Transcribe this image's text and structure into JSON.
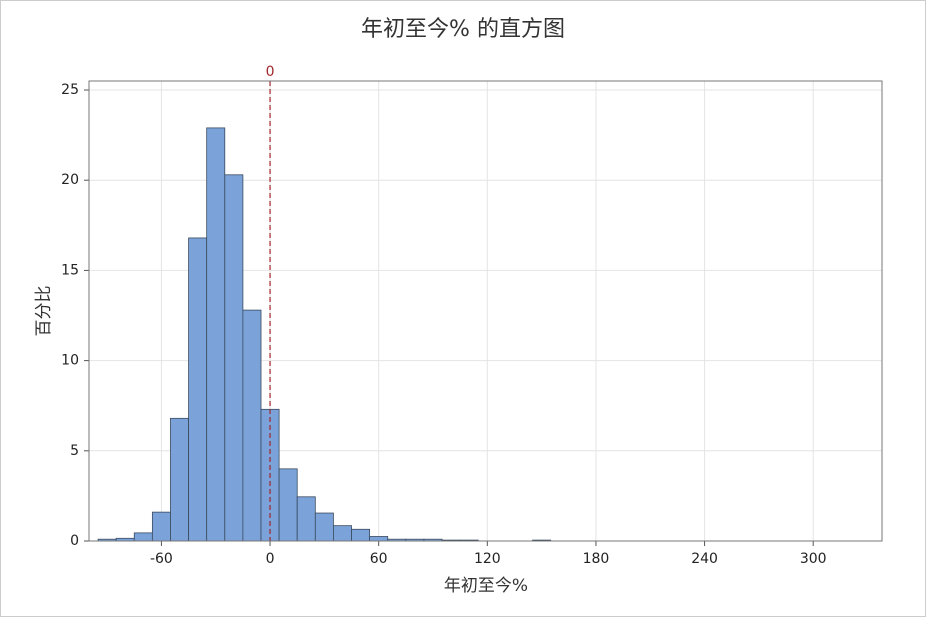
{
  "chart_data": {
    "type": "histogram",
    "title": "年初至今% 的直方图",
    "x_label": "年初至今%",
    "y_label": "百分比",
    "bins": [
      -95,
      -85,
      -75,
      -65,
      -55,
      -45,
      -35,
      -25,
      -15,
      -5,
      5,
      15,
      25,
      35,
      45,
      55,
      65,
      75,
      85,
      95,
      105,
      115,
      125,
      135,
      145,
      155,
      165,
      175,
      185,
      195,
      205,
      215,
      225,
      235,
      245,
      255,
      265,
      275,
      285,
      295,
      305,
      315,
      325
    ],
    "values": [
      0.1,
      0.15,
      0.45,
      1.6,
      6.8,
      16.8,
      22.9,
      20.3,
      12.8,
      7.3,
      4.0,
      2.45,
      1.55,
      0.85,
      0.65,
      0.25,
      0.1,
      0.1,
      0.1,
      0.05,
      0.05,
      0,
      0,
      0,
      0.05,
      0,
      0,
      0,
      0,
      0,
      0,
      0,
      0,
      0,
      0,
      0,
      0,
      0,
      0,
      0,
      0,
      0
    ],
    "color": "#7ba3d9",
    "xlim": [
      -100,
      338
    ],
    "xticks": [
      -60,
      0,
      60,
      120,
      180,
      240,
      300
    ],
    "ylim": [
      0,
      25.5
    ],
    "yticks": [
      0,
      5,
      10,
      15,
      20,
      25
    ],
    "grid": true,
    "reference_line": 0,
    "reference_color": "#a0282e"
  }
}
